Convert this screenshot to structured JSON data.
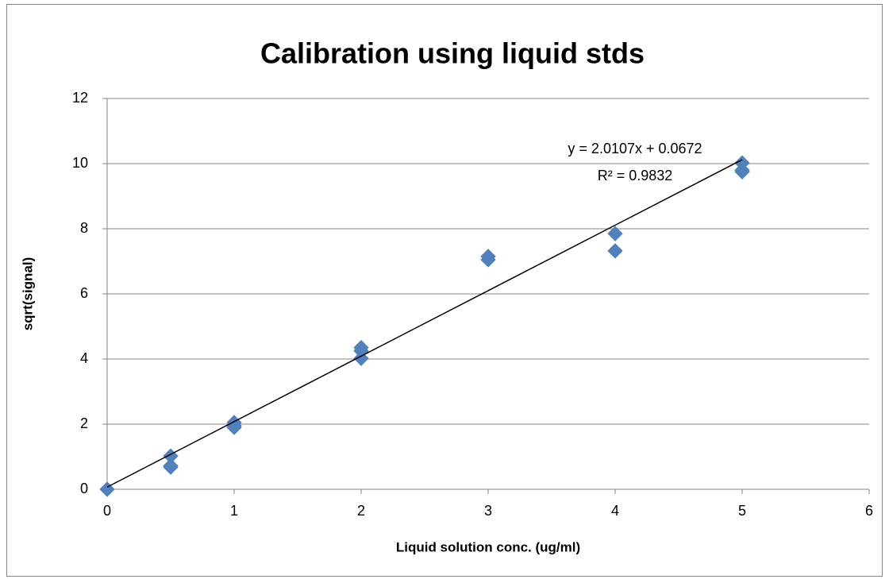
{
  "chart_data": {
    "type": "scatter",
    "title": "Calibration using liquid stds",
    "x_label": "Liquid solution conc. (ug/ml)",
    "y_label": "sqrt(signal)",
    "x": [
      0,
      0.5,
      0.5,
      0.5,
      1,
      1,
      1,
      2,
      2,
      2,
      3,
      3,
      4,
      4,
      5,
      5,
      5
    ],
    "series": [
      {
        "color": "#4f81bd",
        "values": [
          0,
          1.02,
          0.72,
          0.68,
          2.05,
          1.9,
          1.95,
          4.35,
          4.25,
          4.02,
          7.15,
          7.05,
          7.85,
          7.32,
          10.02,
          9.8,
          9.75
        ]
      }
    ],
    "trendline": {
      "slope": 2.0107,
      "intercept": 0.0672,
      "xrange": [
        0,
        5
      ],
      "equation": "y = 2.0107x + 0.0672",
      "r_squared": 0.9832,
      "r_squared_label": "R² = 0.9832"
    },
    "xlim": [
      0,
      6
    ],
    "xticks": [
      0,
      1,
      2,
      3,
      4,
      5,
      6
    ],
    "ylim": [
      0,
      12
    ],
    "yticks": [
      0,
      2,
      4,
      6,
      8,
      10,
      12
    ],
    "grid": true
  }
}
